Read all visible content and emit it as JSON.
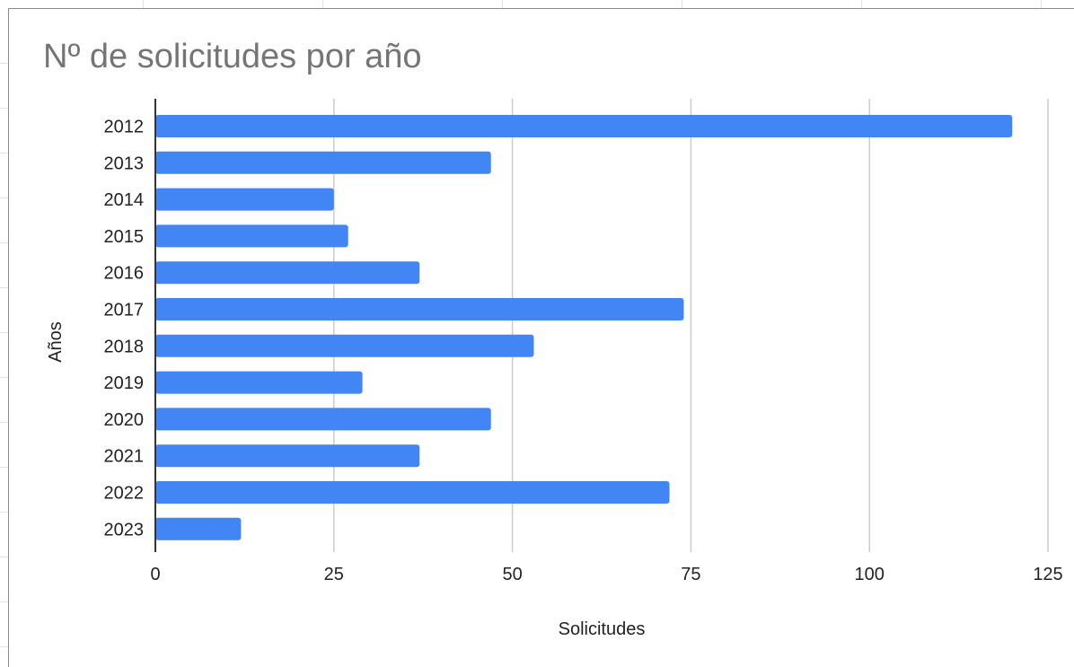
{
  "chart_data": {
    "type": "bar",
    "orientation": "horizontal",
    "title": "Nº de solicitudes por año",
    "xlabel": "Solicitudes",
    "ylabel": "Años",
    "categories": [
      "2012",
      "2013",
      "2014",
      "2015",
      "2016",
      "2017",
      "2018",
      "2019",
      "2020",
      "2021",
      "2022",
      "2023"
    ],
    "values": [
      120,
      47,
      25,
      27,
      37,
      74,
      53,
      29,
      47,
      37,
      72,
      12
    ],
    "xlim": [
      0,
      125
    ],
    "xticks": [
      "0",
      "25",
      "50",
      "75",
      "100",
      "125"
    ],
    "grid": true,
    "legend": "none",
    "colors": {
      "bar": "#4285f4",
      "grid": "#cccccc",
      "axis": "#333333",
      "text": "#222222",
      "title": "#757575"
    }
  }
}
